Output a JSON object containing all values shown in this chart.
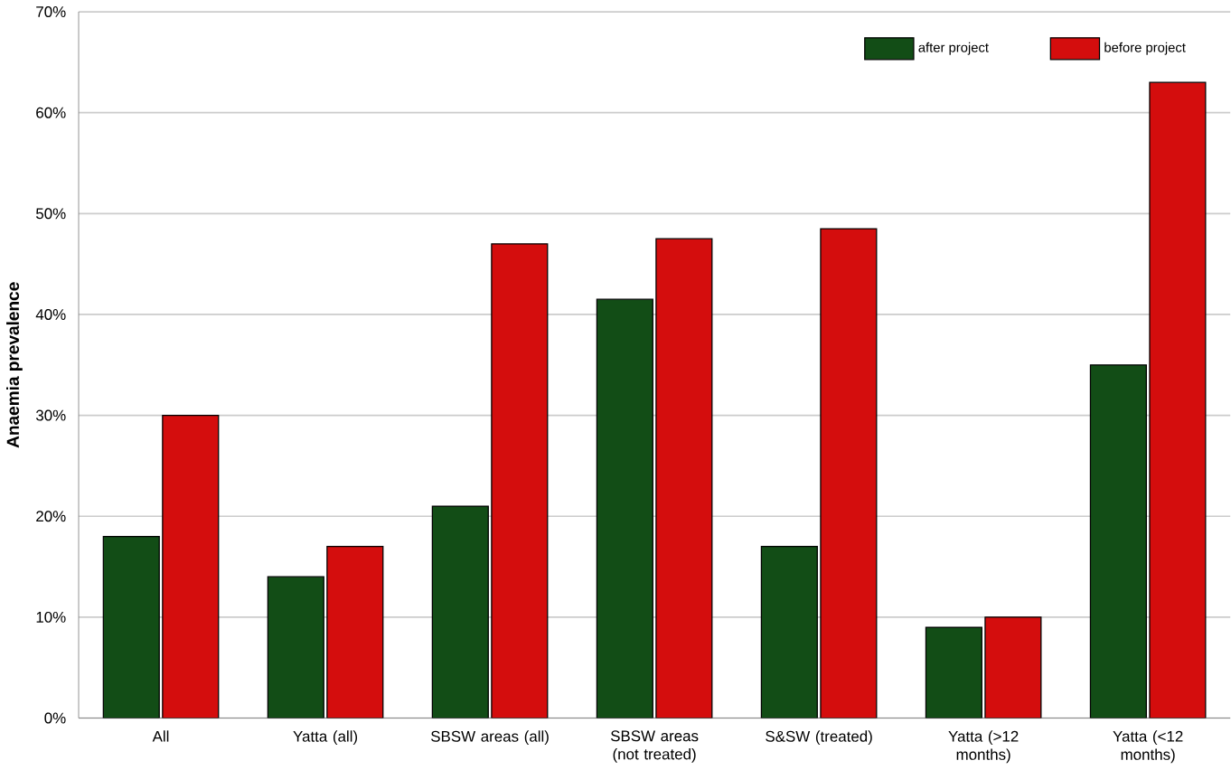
{
  "chart_data": {
    "type": "bar",
    "ylabel": "Anaemia prevalence",
    "categories": [
      "All",
      "Yatta (all)",
      "SBSW areas (all)",
      "SBSW areas (not treated)",
      "S&SW (treated)",
      "Yatta (>12 months)",
      "Yatta (<12 months)"
    ],
    "series": [
      {
        "name": "after project",
        "color": "#124d16",
        "values": [
          18,
          14,
          21,
          41.5,
          17,
          9,
          35
        ]
      },
      {
        "name": "before project",
        "color": "#d40d0d",
        "values": [
          30,
          17,
          47,
          47.5,
          48.5,
          10,
          63
        ]
      }
    ],
    "ylim": [
      0,
      70
    ],
    "yticks": [
      {
        "value": 0,
        "label": "0%"
      },
      {
        "value": 10,
        "label": "10%"
      },
      {
        "value": 20,
        "label": "20%"
      },
      {
        "value": 30,
        "label": "30%"
      },
      {
        "value": 40,
        "label": "40%"
      },
      {
        "value": 50,
        "label": "50%"
      },
      {
        "value": 60,
        "label": "60%"
      },
      {
        "value": 70,
        "label": "70%"
      }
    ],
    "grid": "y",
    "legend": "top right"
  }
}
